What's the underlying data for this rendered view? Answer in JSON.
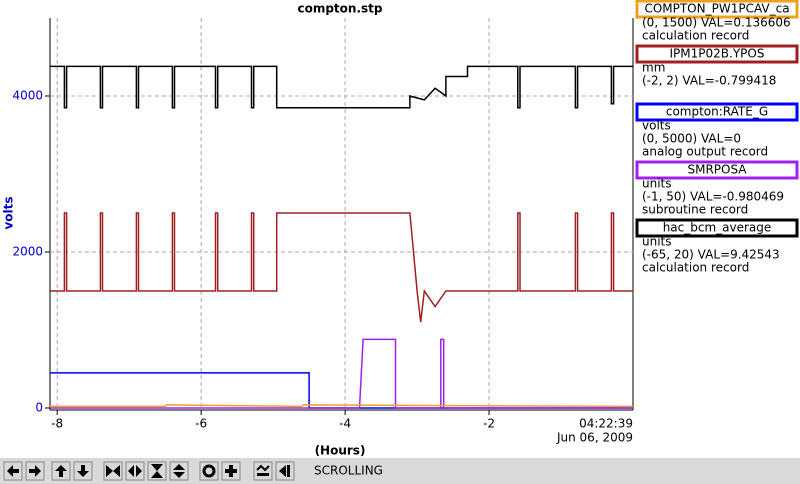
{
  "chart_data": {
    "type": "line",
    "title": "compton.stp",
    "ylabel": "volts",
    "xlabel": "(Hours)",
    "time_label": "04:22:39",
    "date_label": "Jun 06, 2009",
    "status": "SCROLLING",
    "xlim": [
      -8.1,
      0
    ],
    "xticks": [
      -8,
      -6,
      -4,
      -2
    ],
    "ylim": [
      0,
      5000
    ],
    "yticks": [
      0,
      2000,
      4000
    ],
    "grid": true,
    "series": [
      {
        "name": "COMPTON_PW1PCAV_ca",
        "color": "#f0a020",
        "info": "(0, 1500) VAL=0.136606",
        "record": "calculation record",
        "x": [
          -8.1,
          -6.5,
          -6.48,
          -4.6,
          -4.58,
          0
        ],
        "values": [
          20,
          20,
          40,
          20,
          40,
          20
        ]
      },
      {
        "name": "IPM1P02B.YPOS",
        "color": "#a02020",
        "units": "mm",
        "info": "(-2, 2) VAL=-0.799418",
        "record": "",
        "x": [
          -8.1,
          -7.9,
          -7.9,
          -7.87,
          -7.87,
          -7.4,
          -7.4,
          -7.37,
          -7.37,
          -6.9,
          -6.9,
          -6.87,
          -6.87,
          -6.4,
          -6.4,
          -6.37,
          -6.37,
          -5.8,
          -5.8,
          -5.77,
          -5.77,
          -5.3,
          -5.3,
          -5.27,
          -5.27,
          -4.95,
          -4.95,
          -3.1,
          -3.0,
          -2.95,
          -2.9,
          -2.75,
          -2.6,
          -1.6,
          -1.6,
          -1.57,
          -1.57,
          -0.8,
          -0.8,
          -0.77,
          -0.77,
          -0.3,
          -0.3,
          -0.27,
          -0.27,
          0
        ],
        "values": [
          1500,
          1500,
          2500,
          2500,
          1500,
          1500,
          2500,
          2500,
          1500,
          1500,
          2500,
          2500,
          1500,
          1500,
          2500,
          2500,
          1500,
          1500,
          2500,
          2500,
          1500,
          1500,
          2500,
          2500,
          1500,
          1500,
          2500,
          2500,
          1500,
          1100,
          1500,
          1300,
          1500,
          1500,
          2500,
          2500,
          1500,
          1500,
          2500,
          2500,
          1500,
          1500,
          2500,
          2500,
          1500,
          1500
        ]
      },
      {
        "name": "compton:RATE_G",
        "color": "#0000ff",
        "units": "volts",
        "info": "(0, 5000) VAL=0",
        "record": "analog output record",
        "x": [
          -8.1,
          -4.5,
          -4.5,
          0
        ],
        "values": [
          450,
          450,
          0,
          0
        ]
      },
      {
        "name": "SMRPOSA",
        "color": "#a020f0",
        "units": "units",
        "info": "(-1, 50) VAL=-0.980469",
        "record": "subroutine record",
        "x": [
          -8.1,
          -3.8,
          -3.75,
          -3.3,
          -3.3,
          -2.67,
          -2.67,
          -2.63,
          -2.63,
          0
        ],
        "values": [
          0,
          0,
          880,
          880,
          0,
          0,
          880,
          880,
          0,
          0
        ]
      },
      {
        "name": "hac_bcm_average",
        "color": "#000000",
        "units": "units",
        "info": "(-65, 20) VAL=9.42543",
        "record": "calculation record",
        "x": [
          -8.1,
          -7.9,
          -7.9,
          -7.87,
          -7.87,
          -7.4,
          -7.4,
          -7.37,
          -7.37,
          -6.9,
          -6.9,
          -6.87,
          -6.87,
          -6.4,
          -6.4,
          -6.37,
          -6.37,
          -5.8,
          -5.8,
          -5.77,
          -5.77,
          -5.3,
          -5.3,
          -5.27,
          -5.27,
          -4.95,
          -4.95,
          -3.1,
          -3.1,
          -2.9,
          -2.75,
          -2.6,
          -2.6,
          -2.3,
          -2.3,
          -1.6,
          -1.6,
          -1.57,
          -1.57,
          -0.8,
          -0.8,
          -0.77,
          -0.77,
          -0.3,
          -0.3,
          -0.27,
          -0.27,
          0
        ],
        "values": [
          4380,
          4380,
          3850,
          3850,
          4380,
          4380,
          3850,
          3850,
          4380,
          4380,
          3850,
          3850,
          4380,
          4380,
          3850,
          3850,
          4380,
          4380,
          3850,
          3850,
          4380,
          4380,
          3850,
          3850,
          4380,
          4380,
          3850,
          3850,
          4000,
          3950,
          4100,
          4000,
          4250,
          4250,
          4380,
          4380,
          3850,
          3850,
          4380,
          4380,
          3850,
          3850,
          4380,
          4380,
          3900,
          3900,
          4380,
          4380
        ]
      }
    ]
  }
}
